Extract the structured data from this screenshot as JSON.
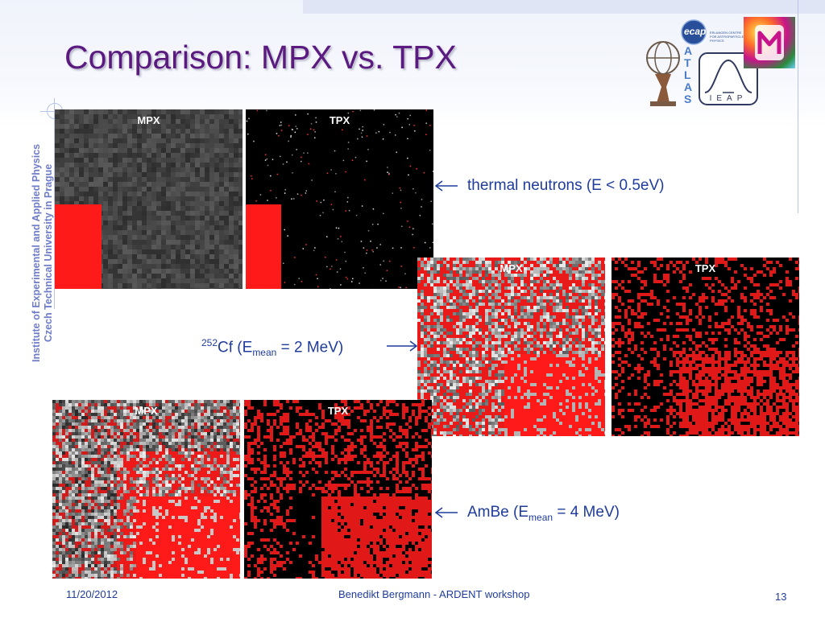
{
  "slide": {
    "title": "Comparison: MPX vs. TPX",
    "side_text_line1": "Institute of Experimental and Applied Physics",
    "side_text_line2": "Czech Technical University in Prague"
  },
  "panels": {
    "thermal": {
      "mpx_label": "MPX",
      "tpx_label": "TPX"
    },
    "cf": {
      "mpx_label": "MPX",
      "tpx_label": "TPX"
    },
    "ambe": {
      "mpx_label": "MPX",
      "tpx_label": "TPX"
    }
  },
  "annotations": {
    "thermal": "thermal neutrons (E < 0.5eV)",
    "cf_sup": "252",
    "cf_pre": "Cf (E",
    "cf_sub": "mean",
    "cf_post": " = 2 MeV)",
    "ambe_pre": "AmBe (E",
    "ambe_sub": "mean",
    "ambe_post": " = 4 MeV)"
  },
  "logos": {
    "ecap": "ecap",
    "ecap_text": "ERLANGEN CENTRE FOR ASTROPARTICLE PHYSICS",
    "atlas": "ATLAS",
    "ieap": "IEAP"
  },
  "footer": {
    "date": "11/20/2012",
    "center": "Benedikt Bergmann - ARDENT workshop",
    "page": "13"
  },
  "colors": {
    "title": "#5a1a80",
    "text": "#1f3c9c",
    "side_text": "#6f7cc8",
    "hit_red": "#ff0000"
  }
}
